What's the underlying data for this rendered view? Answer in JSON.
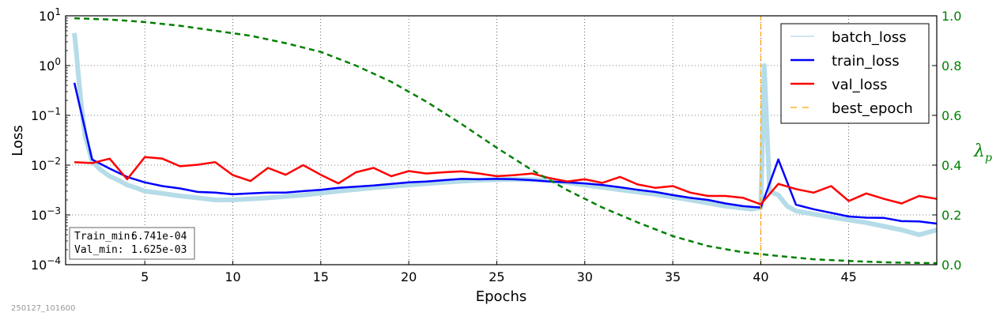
{
  "chart_data": {
    "type": "line",
    "xlabel": "Epochs",
    "ylabel": "Loss",
    "ylabel_right": "λp",
    "yscale": "log",
    "ylim": [
      0.0001,
      10
    ],
    "ylim_right": [
      0.0,
      1.0
    ],
    "xlim": [
      0.5,
      50
    ],
    "grid": true,
    "legend_position": "top-right",
    "x_ticks": [
      5,
      10,
      15,
      20,
      25,
      30,
      35,
      40,
      45
    ],
    "x_tick_labels": [
      "5",
      "10",
      "15",
      "20",
      "25",
      "30",
      "35",
      "40",
      "45"
    ],
    "y_ticks": [
      0.0001,
      0.001,
      0.01,
      0.1,
      1,
      10
    ],
    "y_tick_labels": [
      {
        "base": "10",
        "exp": "−4"
      },
      {
        "base": "10",
        "exp": "−3"
      },
      {
        "base": "10",
        "exp": "−2"
      },
      {
        "base": "10",
        "exp": "−1"
      },
      {
        "base": "10",
        "exp": "0"
      },
      {
        "base": "10",
        "exp": "1"
      }
    ],
    "y_right_ticks": [
      0.0,
      0.2,
      0.4,
      0.6,
      0.8,
      1.0
    ],
    "y_right_tick_labels": [
      "0.0",
      "0.2",
      "0.4",
      "0.6",
      "0.8",
      "1.0"
    ],
    "series": [
      {
        "name": "batch_loss",
        "color": "#add8e6",
        "style": "solid",
        "axis": "left",
        "x": [
          1,
          1.1,
          1.2,
          1.4,
          1.6,
          2,
          2.5,
          3,
          3.5,
          4,
          4.5,
          5,
          6,
          7,
          8,
          9,
          10,
          12,
          14,
          16,
          18,
          20,
          22,
          24,
          26,
          28,
          30,
          32,
          34,
          36,
          38,
          39.5,
          40,
          40.2,
          40.5,
          41,
          41.5,
          42,
          44,
          46,
          48,
          49,
          50
        ],
        "y": [
          4.5,
          2.0,
          0.8,
          0.15,
          0.04,
          0.012,
          0.008,
          0.006,
          0.005,
          0.004,
          0.0035,
          0.003,
          0.0027,
          0.0024,
          0.0022,
          0.002,
          0.002,
          0.0022,
          0.0025,
          0.003,
          0.0035,
          0.004,
          0.0045,
          0.005,
          0.0052,
          0.005,
          0.004,
          0.0032,
          0.0026,
          0.002,
          0.0015,
          0.0013,
          0.0014,
          1.0,
          0.003,
          0.0025,
          0.0015,
          0.0012,
          0.0009,
          0.0007,
          0.0005,
          0.0004,
          0.0005
        ]
      },
      {
        "name": "train_loss",
        "color": "#0000ff",
        "style": "solid",
        "axis": "left",
        "x": [
          1,
          2,
          3,
          4,
          5,
          6,
          7,
          8,
          9,
          10,
          11,
          12,
          13,
          14,
          15,
          16,
          17,
          18,
          19,
          20,
          21,
          22,
          23,
          24,
          25,
          26,
          27,
          28,
          29,
          30,
          31,
          32,
          33,
          34,
          35,
          36,
          37,
          38,
          39,
          40,
          41,
          42,
          43,
          44,
          45,
          46,
          47,
          48,
          49,
          50
        ],
        "y": [
          0.45,
          0.013,
          0.0085,
          0.0058,
          0.0045,
          0.0038,
          0.0034,
          0.0029,
          0.0028,
          0.0026,
          0.0027,
          0.0028,
          0.0028,
          0.003,
          0.0032,
          0.0035,
          0.0037,
          0.0039,
          0.0042,
          0.0045,
          0.0047,
          0.005,
          0.0053,
          0.0052,
          0.0053,
          0.0052,
          0.005,
          0.0047,
          0.0045,
          0.0043,
          0.004,
          0.0036,
          0.0032,
          0.0029,
          0.0025,
          0.0022,
          0.002,
          0.0017,
          0.0015,
          0.0014,
          0.013,
          0.0016,
          0.0013,
          0.0011,
          0.00093,
          0.00088,
          0.00087,
          0.00075,
          0.00074,
          0.00067
        ]
      },
      {
        "name": "val_loss",
        "color": "#ff0000",
        "style": "solid",
        "axis": "left",
        "x": [
          1,
          2,
          3,
          4,
          5,
          6,
          7,
          8,
          9,
          10,
          11,
          12,
          13,
          14,
          15,
          16,
          17,
          18,
          19,
          20,
          21,
          22,
          23,
          24,
          25,
          26,
          27,
          28,
          29,
          30,
          31,
          32,
          33,
          34,
          35,
          36,
          37,
          38,
          39,
          40,
          41,
          42,
          43,
          44,
          45,
          46,
          47,
          48,
          49,
          50
        ],
        "y": [
          0.0115,
          0.011,
          0.0135,
          0.0052,
          0.0145,
          0.0135,
          0.0095,
          0.0102,
          0.0115,
          0.0063,
          0.0048,
          0.0088,
          0.0064,
          0.01,
          0.0064,
          0.0043,
          0.0072,
          0.0088,
          0.006,
          0.0076,
          0.0068,
          0.0072,
          0.0075,
          0.0068,
          0.006,
          0.0063,
          0.0068,
          0.0055,
          0.0047,
          0.0052,
          0.0044,
          0.0058,
          0.0041,
          0.0035,
          0.0038,
          0.0028,
          0.0024,
          0.0024,
          0.0022,
          0.00163,
          0.0042,
          0.0033,
          0.0028,
          0.0038,
          0.0019,
          0.0027,
          0.0021,
          0.0017,
          0.0024,
          0.0021
        ]
      },
      {
        "name": "best_epoch",
        "color": "#ffa500",
        "style": "dashed",
        "axis": "vertical",
        "x": [
          40
        ]
      },
      {
        "name": "lambda_p",
        "color": "#008000",
        "style": "dashed",
        "axis": "right",
        "x": [
          1,
          3,
          5,
          7,
          9,
          11,
          13,
          15,
          17,
          19,
          21,
          23,
          25,
          27,
          29,
          31,
          33,
          35,
          37,
          39,
          41,
          43,
          45,
          47,
          49,
          50
        ],
        "y": [
          0.99,
          0.985,
          0.975,
          0.96,
          0.94,
          0.92,
          0.89,
          0.855,
          0.8,
          0.735,
          0.655,
          0.565,
          0.47,
          0.38,
          0.3,
          0.23,
          0.17,
          0.115,
          0.075,
          0.05,
          0.035,
          0.022,
          0.015,
          0.01,
          0.007,
          0.006
        ]
      }
    ],
    "legend": [
      "batch_loss",
      "train_loss",
      "val_loss",
      "best_epoch"
    ],
    "stats": {
      "train_min_label": "Train_min:",
      "train_min_value": "6.741e-04",
      "val_min_label": "Val_min:",
      "val_min_value": "1.625e-03"
    },
    "footer": "250127_101600"
  }
}
